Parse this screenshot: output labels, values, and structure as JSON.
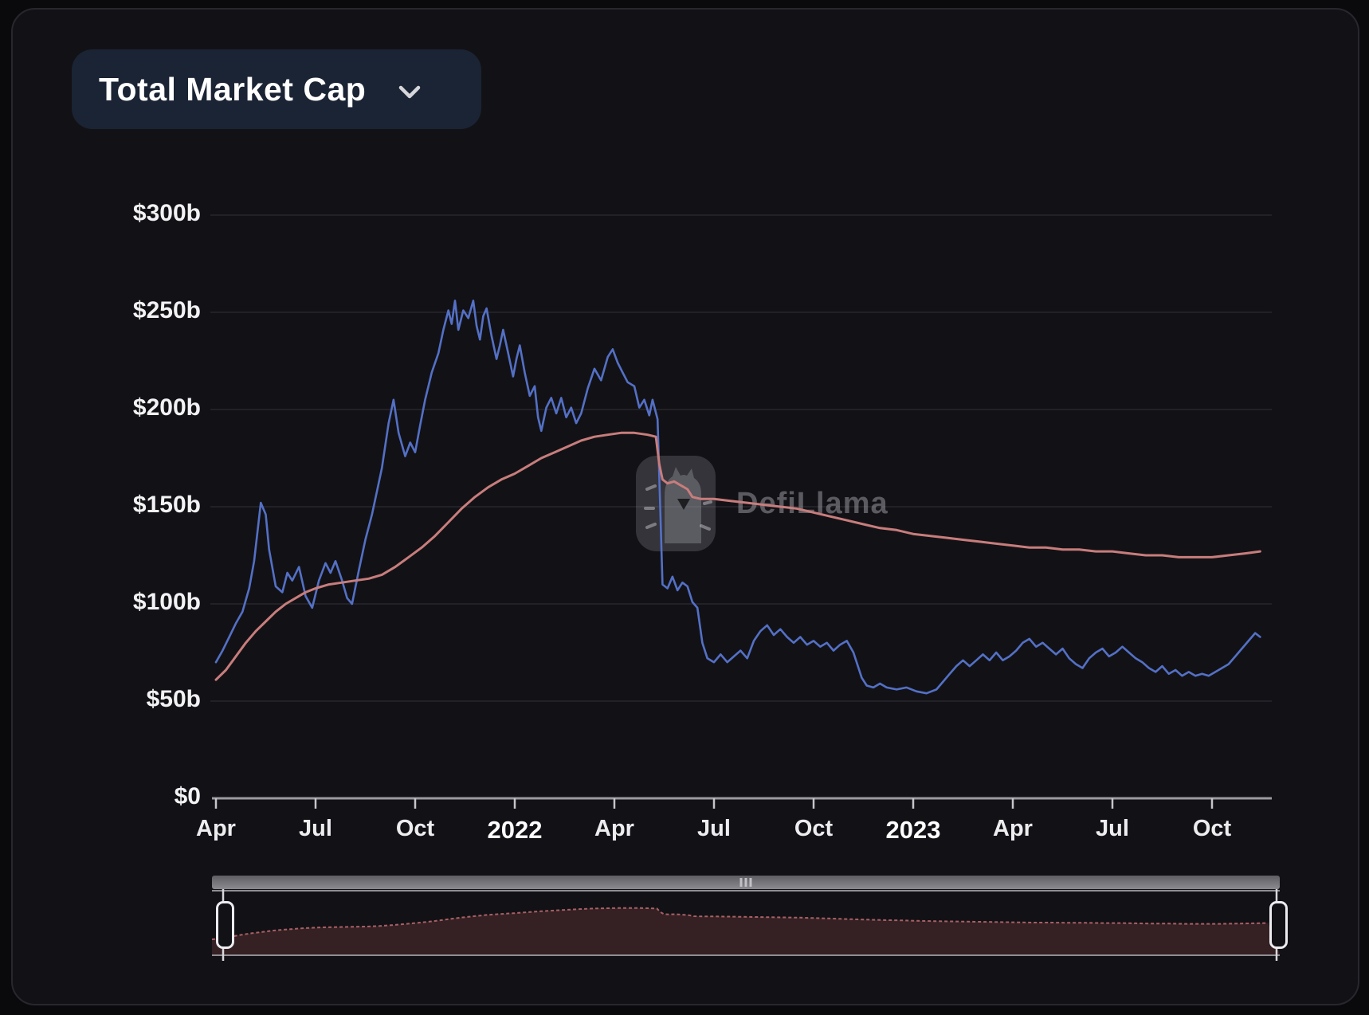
{
  "card": {
    "selector": {
      "label": "Total Market Cap",
      "chevron_icon": "chevron-down"
    }
  },
  "watermark": {
    "text": "DefiLlama",
    "logo_icon": "defillama-llama-logo"
  },
  "colors": {
    "card_bg": "#121216",
    "page_bg": "#0a0a0d",
    "button_bg": "#1b2434",
    "blue_line": "#5470c6",
    "red_line": "#c87d7c",
    "grid_line": "#212127",
    "axis_line": "#9b9ba0",
    "tick_mark": "#c6c6ca",
    "brush_fill": "#352023",
    "brush_line": "#a86065",
    "scrollbar": "#77777b",
    "label_color": "#f2f2f4"
  },
  "chart_data": {
    "type": "line",
    "title": "Total Market Cap",
    "xlabel": "",
    "ylabel": "",
    "grid": true,
    "legend_position": "none",
    "x_axis": {
      "unit": "months since Apr 2021",
      "range": [
        0,
        31.8
      ],
      "ticks": [
        {
          "m": 0,
          "label": "Apr",
          "year": false
        },
        {
          "m": 3,
          "label": "Jul",
          "year": false
        },
        {
          "m": 6,
          "label": "Oct",
          "year": false
        },
        {
          "m": 9,
          "label": "2022",
          "year": true
        },
        {
          "m": 12,
          "label": "Apr",
          "year": false
        },
        {
          "m": 15,
          "label": "Jul",
          "year": false
        },
        {
          "m": 18,
          "label": "Oct",
          "year": false
        },
        {
          "m": 21,
          "label": "2023",
          "year": true
        },
        {
          "m": 24,
          "label": "Apr",
          "year": false
        },
        {
          "m": 27,
          "label": "Jul",
          "year": false
        },
        {
          "m": 30,
          "label": "Oct",
          "year": false
        }
      ]
    },
    "y_axis": {
      "unit": "USD billions",
      "range": [
        0,
        300
      ],
      "ticks": [
        {
          "value": 0,
          "label": "$0"
        },
        {
          "value": 50,
          "label": "$50b"
        },
        {
          "value": 100,
          "label": "$100b"
        },
        {
          "value": 150,
          "label": "$150b"
        },
        {
          "value": 200,
          "label": "$200b"
        },
        {
          "value": 250,
          "label": "$250b"
        },
        {
          "value": 300,
          "label": "$300b"
        }
      ]
    },
    "series": [
      {
        "name": "blue-series",
        "color": "#5470c6",
        "width": 2.6,
        "points": [
          [
            0,
            70
          ],
          [
            0.2,
            76
          ],
          [
            0.4,
            83
          ],
          [
            0.6,
            90
          ],
          [
            0.8,
            96
          ],
          [
            1.0,
            108
          ],
          [
            1.15,
            122
          ],
          [
            1.35,
            152
          ],
          [
            1.5,
            146
          ],
          [
            1.6,
            128
          ],
          [
            1.8,
            109
          ],
          [
            2.0,
            106
          ],
          [
            2.15,
            116
          ],
          [
            2.3,
            112
          ],
          [
            2.5,
            119
          ],
          [
            2.7,
            104
          ],
          [
            2.9,
            98
          ],
          [
            3.1,
            112
          ],
          [
            3.3,
            121
          ],
          [
            3.45,
            116
          ],
          [
            3.6,
            122
          ],
          [
            3.8,
            112
          ],
          [
            3.95,
            103
          ],
          [
            4.1,
            100
          ],
          [
            4.3,
            117
          ],
          [
            4.5,
            133
          ],
          [
            4.7,
            146
          ],
          [
            4.85,
            158
          ],
          [
            5.0,
            170
          ],
          [
            5.2,
            193
          ],
          [
            5.35,
            205
          ],
          [
            5.5,
            188
          ],
          [
            5.7,
            176
          ],
          [
            5.85,
            183
          ],
          [
            6.0,
            178
          ],
          [
            6.15,
            192
          ],
          [
            6.3,
            205
          ],
          [
            6.5,
            219
          ],
          [
            6.7,
            229
          ],
          [
            6.85,
            241
          ],
          [
            7.0,
            251
          ],
          [
            7.1,
            244
          ],
          [
            7.2,
            256
          ],
          [
            7.3,
            241
          ],
          [
            7.45,
            251
          ],
          [
            7.6,
            247
          ],
          [
            7.75,
            256
          ],
          [
            7.85,
            243
          ],
          [
            7.95,
            236
          ],
          [
            8.05,
            248
          ],
          [
            8.15,
            252
          ],
          [
            8.3,
            238
          ],
          [
            8.45,
            226
          ],
          [
            8.55,
            233
          ],
          [
            8.65,
            241
          ],
          [
            8.8,
            229
          ],
          [
            8.95,
            217
          ],
          [
            9.05,
            226
          ],
          [
            9.15,
            233
          ],
          [
            9.3,
            219
          ],
          [
            9.45,
            207
          ],
          [
            9.6,
            212
          ],
          [
            9.7,
            196
          ],
          [
            9.8,
            189
          ],
          [
            9.95,
            201
          ],
          [
            10.1,
            206
          ],
          [
            10.25,
            198
          ],
          [
            10.4,
            206
          ],
          [
            10.55,
            196
          ],
          [
            10.7,
            201
          ],
          [
            10.85,
            193
          ],
          [
            11.0,
            198
          ],
          [
            11.2,
            211
          ],
          [
            11.4,
            221
          ],
          [
            11.6,
            215
          ],
          [
            11.8,
            227
          ],
          [
            11.95,
            231
          ],
          [
            12.1,
            224
          ],
          [
            12.25,
            219
          ],
          [
            12.4,
            214
          ],
          [
            12.6,
            212
          ],
          [
            12.75,
            201
          ],
          [
            12.9,
            205
          ],
          [
            13.05,
            197
          ],
          [
            13.15,
            205
          ],
          [
            13.3,
            195
          ],
          [
            13.38,
            150
          ],
          [
            13.45,
            110
          ],
          [
            13.6,
            108
          ],
          [
            13.75,
            114
          ],
          [
            13.9,
            107
          ],
          [
            14.05,
            111
          ],
          [
            14.2,
            109
          ],
          [
            14.35,
            101
          ],
          [
            14.5,
            98
          ],
          [
            14.65,
            80
          ],
          [
            14.8,
            72
          ],
          [
            15.0,
            70
          ],
          [
            15.2,
            74
          ],
          [
            15.4,
            70
          ],
          [
            15.6,
            73
          ],
          [
            15.8,
            76
          ],
          [
            16.0,
            72
          ],
          [
            16.2,
            81
          ],
          [
            16.4,
            86
          ],
          [
            16.6,
            89
          ],
          [
            16.8,
            84
          ],
          [
            17.0,
            87
          ],
          [
            17.2,
            83
          ],
          [
            17.4,
            80
          ],
          [
            17.6,
            83
          ],
          [
            17.8,
            79
          ],
          [
            18.0,
            81
          ],
          [
            18.2,
            78
          ],
          [
            18.4,
            80
          ],
          [
            18.6,
            76
          ],
          [
            18.8,
            79
          ],
          [
            19.0,
            81
          ],
          [
            19.2,
            75
          ],
          [
            19.45,
            62
          ],
          [
            19.6,
            58
          ],
          [
            19.8,
            57
          ],
          [
            20.0,
            59
          ],
          [
            20.2,
            57
          ],
          [
            20.5,
            56
          ],
          [
            20.8,
            57
          ],
          [
            21.1,
            55
          ],
          [
            21.4,
            54
          ],
          [
            21.7,
            56
          ],
          [
            21.9,
            60
          ],
          [
            22.1,
            64
          ],
          [
            22.3,
            68
          ],
          [
            22.5,
            71
          ],
          [
            22.7,
            68
          ],
          [
            22.9,
            71
          ],
          [
            23.1,
            74
          ],
          [
            23.3,
            71
          ],
          [
            23.5,
            75
          ],
          [
            23.7,
            71
          ],
          [
            23.9,
            73
          ],
          [
            24.1,
            76
          ],
          [
            24.3,
            80
          ],
          [
            24.5,
            82
          ],
          [
            24.7,
            78
          ],
          [
            24.9,
            80
          ],
          [
            25.1,
            77
          ],
          [
            25.3,
            74
          ],
          [
            25.5,
            77
          ],
          [
            25.7,
            72
          ],
          [
            25.9,
            69
          ],
          [
            26.1,
            67
          ],
          [
            26.3,
            72
          ],
          [
            26.5,
            75
          ],
          [
            26.7,
            77
          ],
          [
            26.9,
            73
          ],
          [
            27.1,
            75
          ],
          [
            27.3,
            78
          ],
          [
            27.5,
            75
          ],
          [
            27.7,
            72
          ],
          [
            27.9,
            70
          ],
          [
            28.1,
            67
          ],
          [
            28.3,
            65
          ],
          [
            28.5,
            68
          ],
          [
            28.7,
            64
          ],
          [
            28.9,
            66
          ],
          [
            29.1,
            63
          ],
          [
            29.3,
            65
          ],
          [
            29.5,
            63
          ],
          [
            29.7,
            64
          ],
          [
            29.9,
            63
          ],
          [
            30.1,
            65
          ],
          [
            30.3,
            67
          ],
          [
            30.5,
            69
          ],
          [
            30.7,
            73
          ],
          [
            30.9,
            77
          ],
          [
            31.1,
            81
          ],
          [
            31.3,
            85
          ],
          [
            31.45,
            83
          ]
        ]
      },
      {
        "name": "red-series",
        "color": "#c87d7c",
        "width": 3,
        "points": [
          [
            0,
            61
          ],
          [
            0.3,
            66
          ],
          [
            0.6,
            73
          ],
          [
            0.9,
            80
          ],
          [
            1.2,
            86
          ],
          [
            1.5,
            91
          ],
          [
            1.8,
            96
          ],
          [
            2.1,
            100
          ],
          [
            2.4,
            103
          ],
          [
            2.7,
            106
          ],
          [
            3.0,
            108
          ],
          [
            3.4,
            110
          ],
          [
            3.8,
            111
          ],
          [
            4.2,
            112
          ],
          [
            4.6,
            113
          ],
          [
            5.0,
            115
          ],
          [
            5.4,
            119
          ],
          [
            5.8,
            124
          ],
          [
            6.2,
            129
          ],
          [
            6.6,
            135
          ],
          [
            7.0,
            142
          ],
          [
            7.4,
            149
          ],
          [
            7.8,
            155
          ],
          [
            8.2,
            160
          ],
          [
            8.6,
            164
          ],
          [
            9.0,
            167
          ],
          [
            9.4,
            171
          ],
          [
            9.8,
            175
          ],
          [
            10.2,
            178
          ],
          [
            10.6,
            181
          ],
          [
            11.0,
            184
          ],
          [
            11.4,
            186
          ],
          [
            11.8,
            187
          ],
          [
            12.2,
            188
          ],
          [
            12.6,
            188
          ],
          [
            13.0,
            187
          ],
          [
            13.25,
            186
          ],
          [
            13.35,
            172
          ],
          [
            13.45,
            164
          ],
          [
            13.6,
            162
          ],
          [
            13.8,
            163
          ],
          [
            14.0,
            161
          ],
          [
            14.2,
            159
          ],
          [
            14.35,
            155
          ],
          [
            14.6,
            154
          ],
          [
            15.0,
            154
          ],
          [
            15.5,
            153
          ],
          [
            16.0,
            152
          ],
          [
            16.5,
            151
          ],
          [
            17.0,
            150
          ],
          [
            17.5,
            149
          ],
          [
            18.0,
            147
          ],
          [
            18.5,
            145
          ],
          [
            19.0,
            143
          ],
          [
            19.5,
            141
          ],
          [
            20.0,
            139
          ],
          [
            20.5,
            138
          ],
          [
            21.0,
            136
          ],
          [
            21.5,
            135
          ],
          [
            22.0,
            134
          ],
          [
            22.5,
            133
          ],
          [
            23.0,
            132
          ],
          [
            23.5,
            131
          ],
          [
            24.0,
            130
          ],
          [
            24.5,
            129
          ],
          [
            25.0,
            129
          ],
          [
            25.5,
            128
          ],
          [
            26.0,
            128
          ],
          [
            26.5,
            127
          ],
          [
            27.0,
            127
          ],
          [
            27.5,
            126
          ],
          [
            28.0,
            125
          ],
          [
            28.5,
            125
          ],
          [
            29.0,
            124
          ],
          [
            29.5,
            124
          ],
          [
            30.0,
            124
          ],
          [
            30.5,
            125
          ],
          [
            31.0,
            126
          ],
          [
            31.45,
            127
          ]
        ]
      }
    ]
  },
  "brush": {
    "preview_of": "red-series",
    "value_range": [
      0,
      200
    ],
    "scrollbar_grip_icon": "drag-dots"
  }
}
